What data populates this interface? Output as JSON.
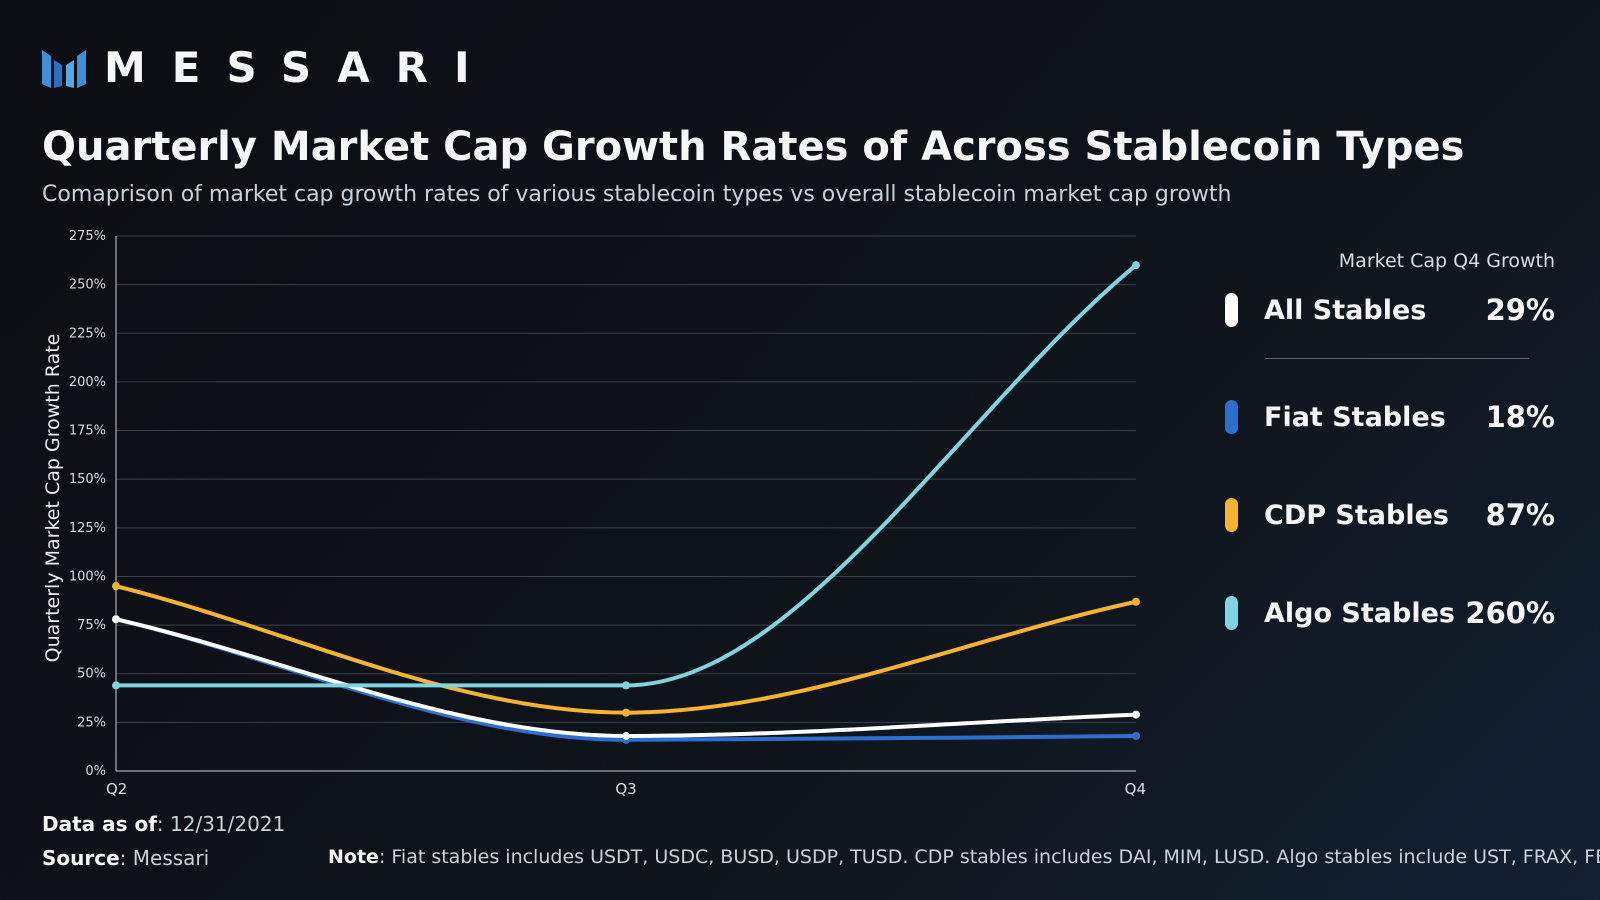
{
  "brand": {
    "name": "MESSARI"
  },
  "colors": {
    "all": "#ffffff",
    "fiat": "#2d6fd1",
    "cdp": "#f6b330",
    "algo": "#7fd4e2",
    "grid": "#3a404a",
    "tick": "#d6dde5"
  },
  "chart_data": {
    "type": "line",
    "title": "Quarterly Market Cap Growth Rates of Across Stablecoin Types",
    "subtitle": "Comaprison of market cap growth rates of various stablecoin types vs overall stablecoin market cap growth",
    "xlabel": "",
    "ylabel": "Quarterly Market Cap Growth Rate",
    "categories": [
      "Q2",
      "Q3",
      "Q4"
    ],
    "yticks": [
      "0%",
      "25%",
      "50%",
      "75%",
      "100%",
      "125%",
      "150%",
      "175%",
      "200%",
      "225%",
      "250%",
      "275%"
    ],
    "ylim": [
      0,
      275
    ],
    "grid": true,
    "series": [
      {
        "name": "All Stables",
        "key": "all",
        "values": [
          78,
          18,
          29
        ]
      },
      {
        "name": "Fiat Stables",
        "key": "fiat",
        "values": [
          78,
          16,
          18
        ]
      },
      {
        "name": "CDP Stables",
        "key": "cdp",
        "values": [
          95,
          30,
          87
        ]
      },
      {
        "name": "Algo Stables",
        "key": "algo",
        "values": [
          44,
          44,
          260
        ]
      }
    ]
  },
  "legend": {
    "header": "Market Cap Q4 Growth",
    "items": [
      {
        "name": "All Stables",
        "value": "29%"
      },
      {
        "name": "Fiat Stables",
        "value": "18%"
      },
      {
        "name": "CDP Stables",
        "value": "87%"
      },
      {
        "name": "Algo Stables",
        "value": "260%"
      }
    ]
  },
  "footer": {
    "data_label": "Data as of",
    "data_value": ": 12/31/2021",
    "source_label": "Source",
    "source_value": ": Messari",
    "note_label": "Note",
    "note_value": ": Fiat stables includes USDT, USDC, BUSD, USDP, TUSD. CDP stables includes DAI, MIM, LUSD. Algo stables include UST, FRAX, FEI"
  }
}
